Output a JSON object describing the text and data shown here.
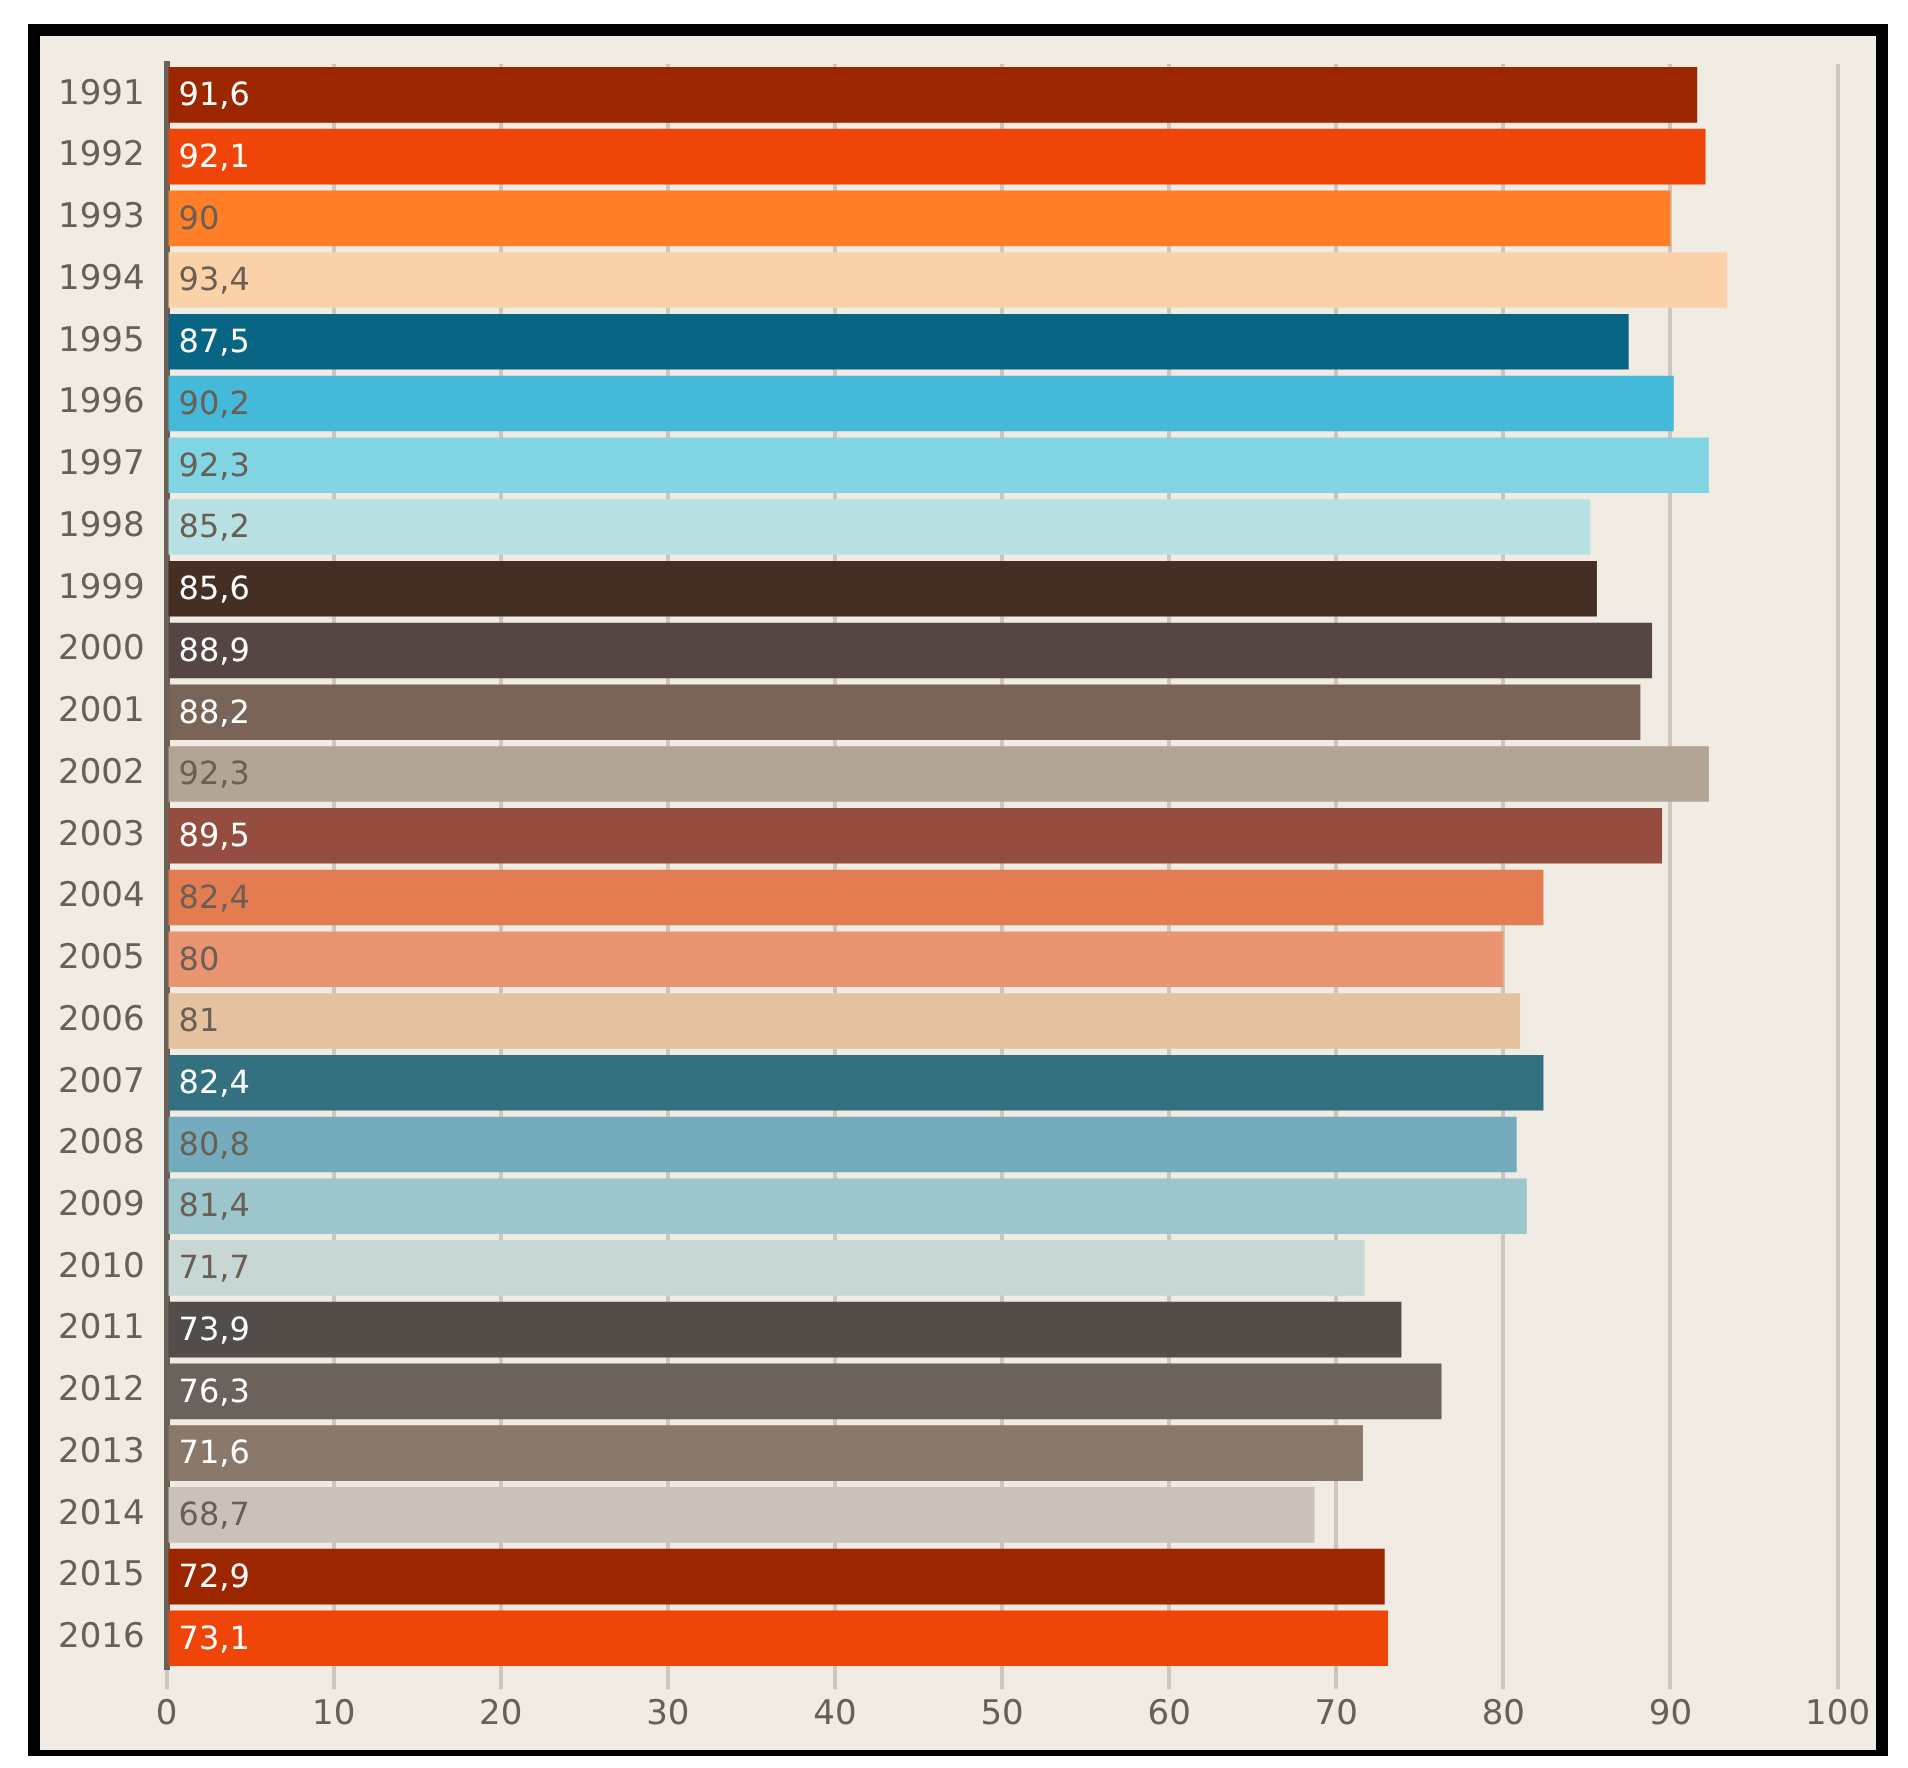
{
  "chart_data": {
    "type": "bar",
    "orientation": "horizontal",
    "categories": [
      "1991",
      "1992",
      "1993",
      "1994",
      "1995",
      "1996",
      "1997",
      "1998",
      "1999",
      "2000",
      "2001",
      "2002",
      "2003",
      "2004",
      "2005",
      "2006",
      "2007",
      "2008",
      "2009",
      "2010",
      "2011",
      "2012",
      "2013",
      "2014",
      "2015",
      "2016"
    ],
    "values": [
      91.6,
      92.1,
      90,
      93.4,
      87.5,
      90.2,
      92.3,
      85.2,
      85.6,
      88.9,
      88.2,
      92.3,
      89.5,
      82.4,
      80,
      81,
      82.4,
      80.8,
      81.4,
      71.7,
      73.9,
      76.3,
      71.6,
      68.7,
      72.9,
      73.1
    ],
    "value_labels": [
      "91,6",
      "92,1",
      "90",
      "93,4",
      "87,5",
      "90,2",
      "92,3",
      "85,2",
      "85,6",
      "88,9",
      "88,2",
      "92,3",
      "89,5",
      "82,4",
      "80",
      "81",
      "82,4",
      "80,8",
      "81,4",
      "71,7",
      "73,9",
      "76,3",
      "71,6",
      "68,7",
      "72,9",
      "73,1"
    ],
    "colors": [
      "#9b2600",
      "#ef4508",
      "#fe7f27",
      "#fbd2a8",
      "#086583",
      "#45b9d9",
      "#82d6e4",
      "#b9e1e3",
      "#452f25",
      "#564643",
      "#796457",
      "#b3a595",
      "#954d40",
      "#e47c52",
      "#ea9472",
      "#e5c29f",
      "#337180",
      "#74acbd",
      "#9cc6cc",
      "#c7d7d5",
      "#524d49",
      "#6a625b",
      "#8a786a",
      "#cac2b8",
      "#9b2600",
      "#ef4508"
    ],
    "xlim": [
      0,
      100
    ],
    "xticks": [
      0,
      10,
      20,
      30,
      40,
      50,
      60,
      70,
      80,
      90,
      100
    ],
    "grid": "x",
    "legend": false
  }
}
